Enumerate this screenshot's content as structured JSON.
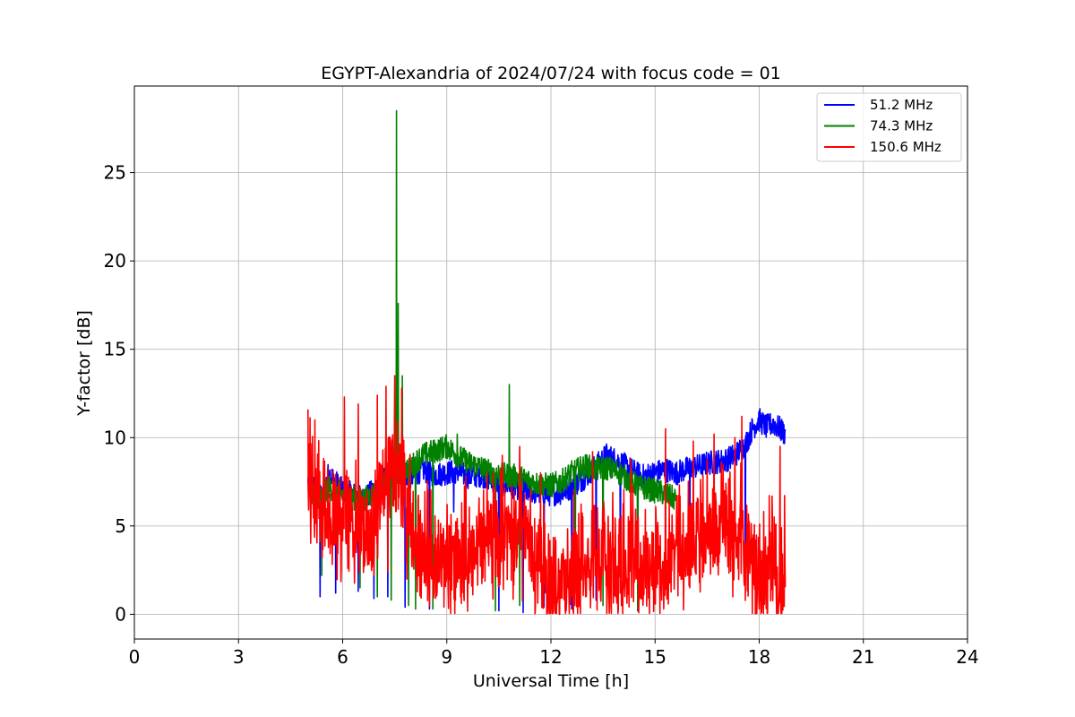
{
  "chart_data": {
    "type": "line",
    "title": "EGYPT-Alexandria of 2024/07/24 with focus code = 01",
    "xlabel": "Universal Time [h]",
    "ylabel": "Y-factor [dB]",
    "xlim": [
      0,
      24
    ],
    "ylim": [
      -1.4,
      29.9
    ],
    "xticks": [
      0,
      3,
      6,
      9,
      12,
      15,
      18,
      21,
      24
    ],
    "yticks": [
      0,
      5,
      10,
      15,
      20,
      25
    ],
    "xtick_labels": [
      "0",
      "3",
      "6",
      "9",
      "12",
      "15",
      "18",
      "21",
      "24"
    ],
    "ytick_labels": [
      "0",
      "5",
      "10",
      "15",
      "20",
      "25"
    ],
    "grid": true,
    "legend_position": "top-right",
    "series": [
      {
        "name": " 51.2 MHz",
        "color": "#0000ff",
        "points": [
          [
            5.0,
            7.5
          ],
          [
            5.2,
            7.2
          ],
          [
            5.4,
            6.5
          ],
          [
            5.6,
            8.0
          ],
          [
            5.8,
            7.5
          ],
          [
            6.0,
            7.0
          ],
          [
            6.3,
            6.8
          ],
          [
            6.6,
            6.5
          ],
          [
            7.0,
            7.2
          ],
          [
            7.3,
            7.8
          ],
          [
            7.6,
            8.0
          ],
          [
            8.0,
            7.8
          ],
          [
            8.3,
            8.2
          ],
          [
            8.6,
            7.9
          ],
          [
            9.0,
            8.0
          ],
          [
            9.3,
            8.1
          ],
          [
            9.6,
            7.8
          ],
          [
            10.0,
            7.9
          ],
          [
            10.3,
            7.6
          ],
          [
            10.6,
            7.4
          ],
          [
            11.0,
            7.2
          ],
          [
            11.3,
            7.0
          ],
          [
            11.6,
            6.9
          ],
          [
            12.0,
            6.8
          ],
          [
            12.3,
            6.9
          ],
          [
            12.6,
            7.2
          ],
          [
            13.0,
            7.8
          ],
          [
            13.3,
            8.4
          ],
          [
            13.6,
            9.0
          ],
          [
            14.0,
            8.6
          ],
          [
            14.3,
            8.2
          ],
          [
            14.6,
            7.8
          ],
          [
            15.0,
            8.0
          ],
          [
            15.3,
            8.2
          ],
          [
            15.6,
            8.0
          ],
          [
            16.0,
            8.3
          ],
          [
            16.3,
            8.4
          ],
          [
            16.6,
            8.6
          ],
          [
            17.0,
            8.7
          ],
          [
            17.3,
            9.0
          ],
          [
            17.6,
            9.6
          ],
          [
            17.8,
            10.5
          ],
          [
            18.0,
            11.0
          ],
          [
            18.2,
            10.6
          ],
          [
            18.4,
            10.8
          ],
          [
            18.6,
            10.5
          ],
          [
            18.75,
            10.2
          ]
        ],
        "dips": [
          [
            5.35,
            1.0
          ],
          [
            5.8,
            1.2
          ],
          [
            6.45,
            1.3
          ],
          [
            6.9,
            0.9
          ],
          [
            7.3,
            1.0
          ],
          [
            7.8,
            0.4
          ],
          [
            8.5,
            0.3
          ],
          [
            9.2,
            5.8
          ],
          [
            10.5,
            0.2
          ],
          [
            11.2,
            0.1
          ],
          [
            11.8,
            0.4
          ],
          [
            12.6,
            0.3
          ],
          [
            13.3,
            0.8
          ],
          [
            14.0,
            1.2
          ],
          [
            14.5,
            0.2
          ],
          [
            16.0,
            5.0
          ],
          [
            17.6,
            2.0
          ]
        ]
      },
      {
        "name": " 74.3 MHz",
        "color": "#008000",
        "points": [
          [
            5.0,
            7.2
          ],
          [
            5.2,
            6.8
          ],
          [
            5.4,
            6.5
          ],
          [
            5.6,
            7.2
          ],
          [
            5.8,
            7.0
          ],
          [
            6.0,
            6.8
          ],
          [
            6.3,
            6.6
          ],
          [
            6.6,
            6.5
          ],
          [
            7.0,
            7.0
          ],
          [
            7.3,
            7.5
          ],
          [
            7.6,
            8.0
          ],
          [
            8.0,
            8.4
          ],
          [
            8.3,
            9.0
          ],
          [
            8.6,
            9.2
          ],
          [
            9.0,
            9.5
          ],
          [
            9.3,
            9.0
          ],
          [
            9.6,
            8.6
          ],
          [
            10.0,
            8.3
          ],
          [
            10.3,
            8.0
          ],
          [
            10.6,
            7.9
          ],
          [
            11.0,
            7.8
          ],
          [
            11.3,
            7.6
          ],
          [
            11.6,
            7.4
          ],
          [
            12.0,
            7.3
          ],
          [
            12.3,
            7.5
          ],
          [
            12.6,
            8.0
          ],
          [
            13.0,
            8.4
          ],
          [
            13.3,
            8.2
          ],
          [
            13.6,
            8.3
          ],
          [
            14.0,
            8.0
          ],
          [
            14.3,
            7.5
          ],
          [
            14.6,
            7.2
          ],
          [
            15.0,
            7.0
          ],
          [
            15.3,
            6.8
          ],
          [
            15.6,
            6.5
          ]
        ],
        "spikes": [
          [
            7.55,
            28.5
          ],
          [
            7.6,
            17.6
          ],
          [
            7.72,
            13.5
          ],
          [
            9.3,
            10.2
          ],
          [
            10.8,
            13.0
          ]
        ],
        "dips": [
          [
            5.4,
            2.2
          ],
          [
            6.5,
            1.5
          ],
          [
            7.0,
            1.0
          ],
          [
            7.4,
            0.8
          ],
          [
            7.9,
            0.5
          ],
          [
            8.1,
            0.3
          ],
          [
            8.6,
            0.3
          ],
          [
            10.4,
            0.2
          ],
          [
            11.1,
            0.5
          ],
          [
            12.7,
            1.2
          ],
          [
            13.5,
            0.5
          ],
          [
            14.5,
            0.3
          ]
        ]
      },
      {
        "name": "150.6 MHz",
        "color": "#ff0000",
        "points": [
          [
            5.0,
            8.0
          ],
          [
            5.2,
            7.0
          ],
          [
            5.4,
            5.5
          ],
          [
            5.6,
            5.0
          ],
          [
            5.8,
            4.5
          ],
          [
            6.0,
            5.0
          ],
          [
            6.2,
            5.5
          ],
          [
            6.4,
            5.0
          ],
          [
            6.6,
            4.5
          ],
          [
            6.8,
            5.0
          ],
          [
            7.0,
            6.0
          ],
          [
            7.2,
            7.0
          ],
          [
            7.4,
            8.0
          ],
          [
            7.6,
            7.5
          ],
          [
            7.8,
            6.0
          ],
          [
            8.0,
            4.5
          ],
          [
            8.3,
            3.5
          ],
          [
            8.6,
            3.0
          ],
          [
            9.0,
            3.0
          ],
          [
            9.3,
            3.2
          ],
          [
            9.6,
            3.5
          ],
          [
            10.0,
            4.0
          ],
          [
            10.3,
            4.2
          ],
          [
            10.6,
            4.5
          ],
          [
            11.0,
            4.0
          ],
          [
            11.3,
            4.5
          ],
          [
            11.6,
            3.5
          ],
          [
            12.0,
            1.8
          ],
          [
            12.3,
            1.5
          ],
          [
            12.6,
            2.5
          ],
          [
            13.0,
            2.8
          ],
          [
            13.3,
            3.0
          ],
          [
            13.6,
            2.6
          ],
          [
            14.0,
            2.8
          ],
          [
            14.3,
            3.0
          ],
          [
            14.6,
            2.5
          ],
          [
            15.0,
            3.0
          ],
          [
            15.3,
            3.2
          ],
          [
            15.6,
            3.5
          ],
          [
            16.0,
            4.0
          ],
          [
            16.3,
            4.2
          ],
          [
            16.6,
            4.5
          ],
          [
            17.0,
            4.8
          ],
          [
            17.3,
            4.5
          ],
          [
            17.6,
            4.0
          ],
          [
            17.8,
            2.5
          ],
          [
            18.0,
            1.8
          ],
          [
            18.2,
            2.0
          ],
          [
            18.4,
            2.5
          ],
          [
            18.6,
            2.0
          ],
          [
            18.75,
            2.8
          ]
        ],
        "spikes": [
          [
            5.0,
            11.6
          ],
          [
            5.2,
            11.0
          ],
          [
            6.05,
            12.3
          ],
          [
            6.45,
            11.9
          ],
          [
            7.0,
            12.4
          ],
          [
            7.25,
            12.9
          ],
          [
            7.5,
            13.5
          ],
          [
            7.7,
            12.8
          ],
          [
            10.6,
            9.0
          ],
          [
            11.1,
            9.5
          ],
          [
            11.7,
            8.0
          ],
          [
            13.2,
            9.2
          ],
          [
            14.3,
            8.8
          ],
          [
            15.3,
            10.5
          ],
          [
            16.1,
            9.8
          ],
          [
            16.7,
            10.2
          ],
          [
            17.3,
            10.0
          ],
          [
            17.5,
            11.2
          ],
          [
            18.6,
            9.5
          ]
        ],
        "dips": [
          [
            6.1,
            4.0
          ],
          [
            6.9,
            2.2
          ],
          [
            7.3,
            2.4
          ],
          [
            7.85,
            2.0
          ],
          [
            8.4,
            1.6
          ],
          [
            12.25,
            0.0
          ],
          [
            13.0,
            1.0
          ],
          [
            14.0,
            1.2
          ],
          [
            16.0,
            1.5
          ],
          [
            18.0,
            0.3
          ],
          [
            18.7,
            0.8
          ]
        ]
      }
    ]
  }
}
